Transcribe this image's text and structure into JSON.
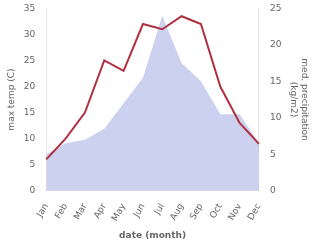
{
  "chart_data": {
    "type": "line",
    "xlabel": "date (month)",
    "ylabel": "max temp (C)",
    "y2label": "med. precipitation\n(kg/m2)",
    "categories": [
      "Jan",
      "Feb",
      "Mar",
      "Apr",
      "May",
      "Jun",
      "Jul",
      "Aug",
      "Sep",
      "Oct",
      "Nov",
      "Dec"
    ],
    "series": [
      {
        "type": "area",
        "color": "#b0b8e8",
        "axis": "y2",
        "values": [
          5.0,
          6.5,
          7.0,
          8.5,
          12.0,
          15.5,
          24.0,
          17.5,
          15.0,
          10.5,
          10.5,
          6.5
        ]
      },
      {
        "type": "line",
        "color": "#b03040",
        "values": [
          6.0,
          10.0,
          15.0,
          25.0,
          23.0,
          32.0,
          31.0,
          33.5,
          32.0,
          20.0,
          13.0,
          9.0
        ]
      }
    ],
    "ylim": [
      0,
      35
    ],
    "yticks": [
      0,
      5,
      10,
      15,
      20,
      25,
      30,
      35
    ],
    "y2lim": [
      0,
      25
    ],
    "y2ticks": [
      0,
      5,
      10,
      15,
      20,
      25
    ],
    "grid": false
  }
}
